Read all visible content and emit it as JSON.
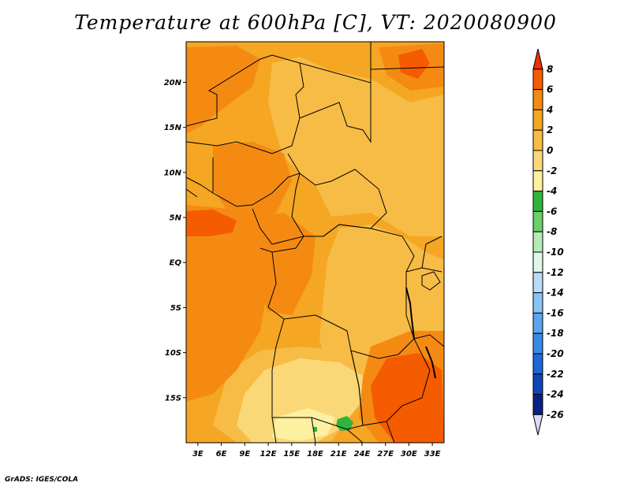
{
  "title": "Temperature at 600hPa [C], VT: 2020080900",
  "credit": "GrADS: IGES/COLA",
  "map": {
    "variable": "Temperature",
    "level": "600hPa",
    "units": "C",
    "valid_time": "2020080900",
    "lat_labels": [
      "20N",
      "15N",
      "10N",
      "5N",
      "EQ",
      "5S",
      "10S",
      "15S"
    ],
    "lat_values": [
      20,
      15,
      10,
      5,
      0,
      -5,
      -10,
      -15
    ],
    "lon_labels": [
      "3E",
      "6E",
      "9E",
      "12E",
      "15E",
      "18E",
      "21E",
      "24E",
      "27E",
      "30E",
      "33E"
    ],
    "lon_values": [
      3,
      6,
      9,
      12,
      15,
      18,
      21,
      24,
      27,
      30,
      33
    ],
    "lon_range": [
      1.5,
      34.5
    ],
    "lat_range": [
      -20,
      24.5
    ]
  },
  "colorbar": {
    "labels": [
      "8",
      "6",
      "4",
      "2",
      "0",
      "-2",
      "-4",
      "-6",
      "-8",
      "-10",
      "-12",
      "-14",
      "-16",
      "-18",
      "-20",
      "-22",
      "-24",
      "-26"
    ],
    "colors": [
      "#ef2f00",
      "#f55b00",
      "#f58a13",
      "#f5a623",
      "#f7bc45",
      "#fbd877",
      "#fdf0a0",
      "#2fb43d",
      "#6bd06b",
      "#b4ecb4",
      "#e2f6e8",
      "#b8dcf8",
      "#8ac4f6",
      "#5aa6ee",
      "#3a88e6",
      "#1c68d6",
      "#0e46b8",
      "#0b2080",
      "#ddd9f0"
    ]
  }
}
